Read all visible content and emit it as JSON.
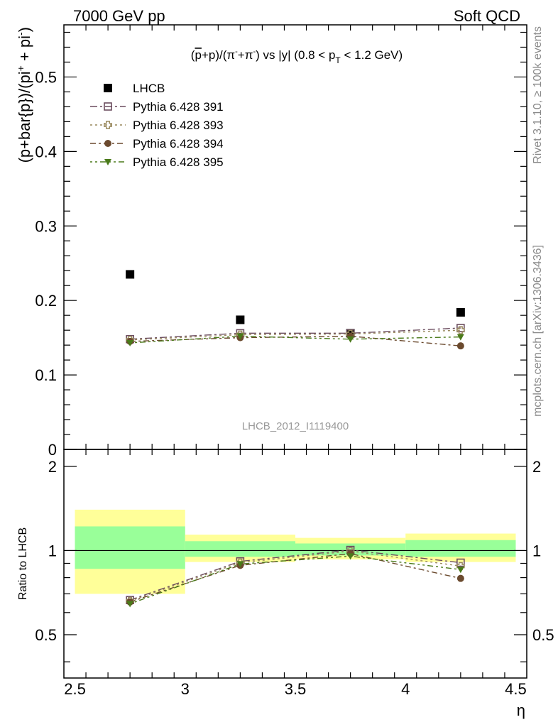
{
  "header": {
    "left": "7000 GeV pp",
    "right": "Soft QCD"
  },
  "side_labels": {
    "rivet": "Rivet 3.1.10, ≥ 100k events",
    "mcplots": "mcplots.cern.ch [arXiv:1306.3436]"
  },
  "watermark": "LHCB_2012_I1119400",
  "chart_data": {
    "type": "scatter",
    "title": "(p̅+p)/(π⁻+π⁻) vs |y| (0.8 < pT < 1.2 GeV)",
    "title_parts": {
      "pre": "(",
      "pbar": "p",
      "mid1": "+p)/(π",
      "sup1": "-",
      "mid2": "+π",
      "sup2": "-",
      "mid3": ") vs |y| (0.8 < p",
      "sub": "T",
      "post": " < 1.2 GeV)"
    },
    "xlabel": "η",
    "ylabel": "(p+bar{p})/(pi+ + pi-)",
    "ylabel_parts": {
      "main": "(p+bar{p})/(pi",
      "sup1": "+",
      "mid": " + pi",
      "sup2": "-",
      "end": ")"
    },
    "ratio_ylabel": "Ratio to LHCB",
    "xlim": [
      2.5,
      4.5
    ],
    "ylim": [
      0,
      0.57
    ],
    "ratio_ylim": [
      0.35,
      2.3
    ],
    "x_ticks": [
      "2.5",
      "3",
      "3.5",
      "4",
      "4.5"
    ],
    "y_ticks": [
      "0.1",
      "0.2",
      "0.3",
      "0.4",
      "0.5"
    ],
    "y_zero_label": "0",
    "ratio_ticks": [
      "0.5",
      "1",
      "2"
    ],
    "legend_position": "top-left",
    "bins": [
      [
        2.5,
        3.0
      ],
      [
        3.0,
        3.5
      ],
      [
        3.5,
        4.0
      ],
      [
        4.0,
        4.5
      ]
    ],
    "x": [
      2.75,
      3.25,
      3.75,
      4.25
    ],
    "series": [
      {
        "name": "LHCB",
        "values": [
          0.235,
          0.174,
          0.156,
          0.184
        ],
        "color": "#000000",
        "marker": "square-filled"
      },
      {
        "name": "Pythia 6.428 391",
        "values": [
          0.148,
          0.156,
          0.156,
          0.163
        ],
        "color": "#6b4c5e",
        "marker": "square-open",
        "ratio": [
          0.665,
          0.915,
          1.005,
          0.905
        ]
      },
      {
        "name": "Pythia 6.428 393",
        "values": [
          0.147,
          0.154,
          0.155,
          0.16
        ],
        "color": "#9a8a5e",
        "marker": "cross-open",
        "ratio": [
          0.66,
          0.905,
          0.995,
          0.88
        ]
      },
      {
        "name": "Pythia 6.428 394",
        "values": [
          0.145,
          0.15,
          0.152,
          0.139
        ],
        "color": "#6b4a2e",
        "marker": "circle-filled",
        "ratio": [
          0.655,
          0.885,
          0.975,
          0.795
        ]
      },
      {
        "name": "Pythia 6.428 395",
        "values": [
          0.143,
          0.152,
          0.148,
          0.151
        ],
        "color": "#4a7a1a",
        "marker": "triangle-down-filled",
        "ratio": [
          0.645,
          0.895,
          0.955,
          0.855
        ]
      }
    ],
    "ratio_bands": {
      "stat_color": "#99ff99",
      "total_color": "#ffff99",
      "stat": [
        [
          0.86,
          1.22
        ],
        [
          0.95,
          1.08
        ],
        [
          0.96,
          1.06
        ],
        [
          0.95,
          1.09
        ]
      ],
      "total": [
        [
          0.7,
          1.4
        ],
        [
          0.91,
          1.14
        ],
        [
          0.93,
          1.11
        ],
        [
          0.91,
          1.15
        ]
      ]
    }
  }
}
